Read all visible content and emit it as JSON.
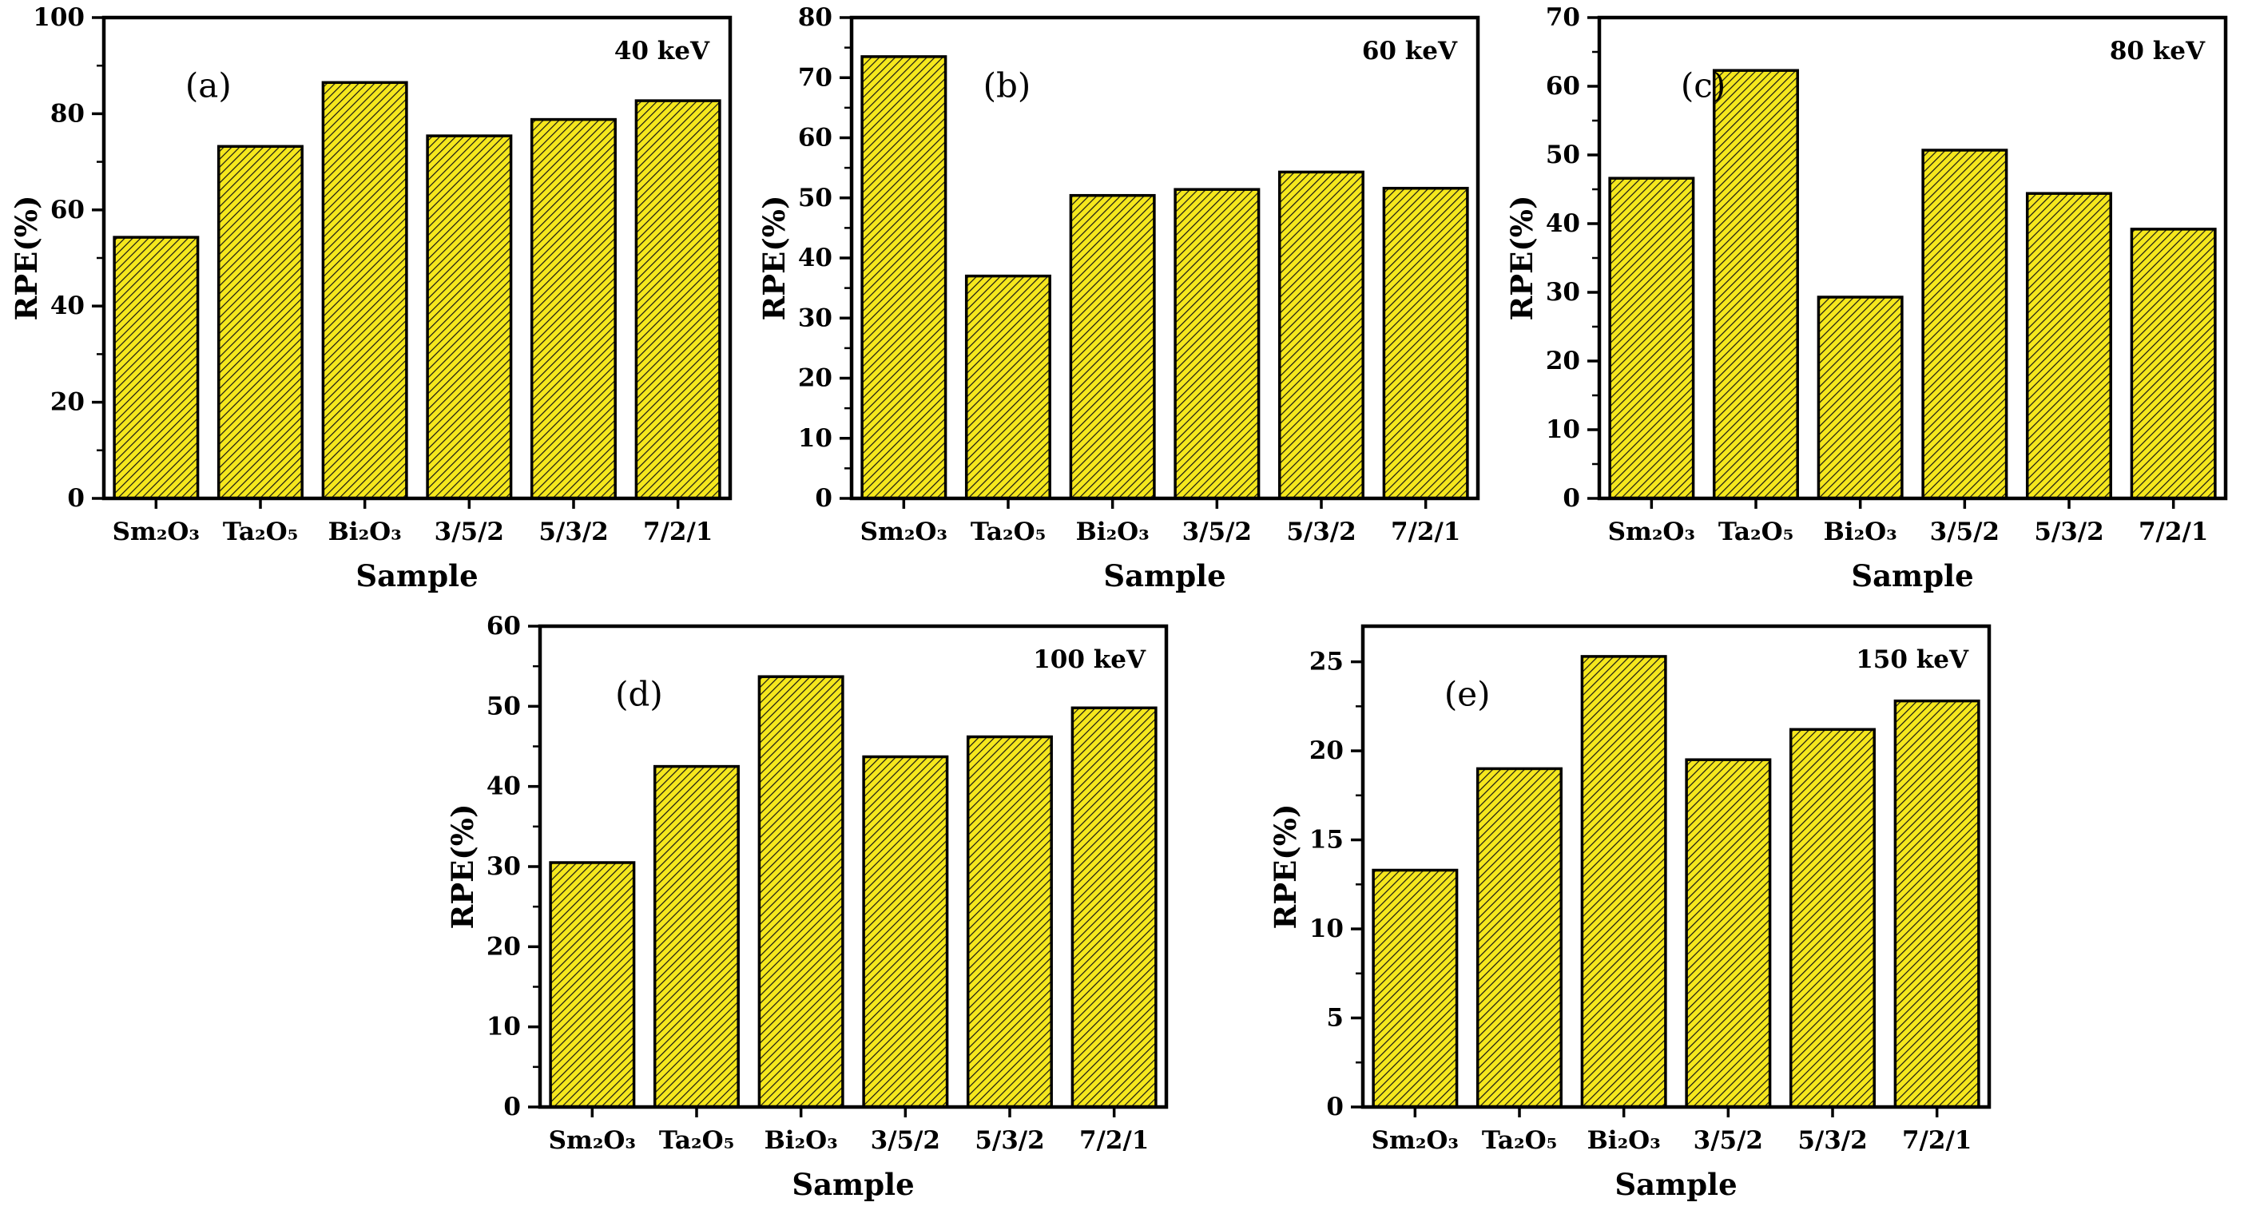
{
  "figure": {
    "background": "#ffffff",
    "style": {
      "bar_fill": "#f5e71d",
      "hatch_color": "#151515",
      "bar_edge": "#000000",
      "axis_color": "#000000",
      "text_color": "#000000"
    }
  },
  "chart_data": [
    {
      "id": "a",
      "type": "bar",
      "panel_label": "(a)",
      "annotation": "40 keV",
      "xlabel": "Sample",
      "ylabel": "RPE(%)",
      "categories": [
        "Sm₂O₃",
        "Ta₂O₅",
        "Bi₂O₃",
        "3/5/2",
        "5/3/2",
        "7/2/1"
      ],
      "values": [
        54.3,
        73.2,
        86.5,
        75.4,
        78.8,
        82.7
      ],
      "ylim": [
        0,
        100
      ],
      "ytick_step": 20,
      "yminor_step": 10,
      "grid": "off",
      "legend": "none",
      "panel_label_x": 0.13
    },
    {
      "id": "b",
      "type": "bar",
      "panel_label": "(b)",
      "annotation": "60 keV",
      "xlabel": "Sample",
      "ylabel": "RPE(%)",
      "categories": [
        "Sm₂O₃",
        "Ta₂O₅",
        "Bi₂O₃",
        "3/5/2",
        "5/3/2",
        "7/2/1"
      ],
      "values": [
        73.5,
        37.0,
        50.4,
        51.4,
        54.3,
        51.6
      ],
      "ylim": [
        0,
        80
      ],
      "ytick_step": 10,
      "yminor_step": 5,
      "grid": "off",
      "legend": "none",
      "panel_label_x": 0.21
    },
    {
      "id": "c",
      "type": "bar",
      "panel_label": "(c)",
      "annotation": "80 keV",
      "xlabel": "Sample",
      "ylabel": "RPE(%)",
      "categories": [
        "Sm₂O₃",
        "Ta₂O₅",
        "Bi₂O₃",
        "3/5/2",
        "5/3/2",
        "7/2/1"
      ],
      "values": [
        46.6,
        62.3,
        29.3,
        50.7,
        44.4,
        39.2
      ],
      "ylim": [
        0,
        70
      ],
      "ytick_step": 10,
      "yminor_step": 5,
      "grid": "off",
      "legend": "none",
      "panel_label_x": 0.13
    },
    {
      "id": "d",
      "type": "bar",
      "panel_label": "(d)",
      "annotation": "100 keV",
      "xlabel": "Sample",
      "ylabel": "RPE(%)",
      "categories": [
        "Sm₂O₃",
        "Ta₂O₅",
        "Bi₂O₃",
        "3/5/2",
        "5/3/2",
        "7/2/1"
      ],
      "values": [
        30.5,
        42.5,
        53.7,
        43.7,
        46.2,
        49.8
      ],
      "ylim": [
        0,
        60
      ],
      "ytick_step": 10,
      "yminor_step": 5,
      "grid": "off",
      "legend": "none",
      "panel_label_x": 0.12
    },
    {
      "id": "e",
      "type": "bar",
      "panel_label": "(e)",
      "annotation": "150 keV",
      "xlabel": "Sample",
      "ylabel": "RPE(%)",
      "categories": [
        "Sm₂O₃",
        "Ta₂O₅",
        "Bi₂O₃",
        "3/5/2",
        "5/3/2",
        "7/2/1"
      ],
      "values": [
        13.3,
        19.0,
        25.3,
        19.5,
        21.2,
        22.8
      ],
      "ylim": [
        0,
        27
      ],
      "ytick_step": 5,
      "ytick_max_label": 25,
      "yminor_step": 2.5,
      "grid": "off",
      "legend": "none",
      "panel_label_x": 0.13
    }
  ]
}
